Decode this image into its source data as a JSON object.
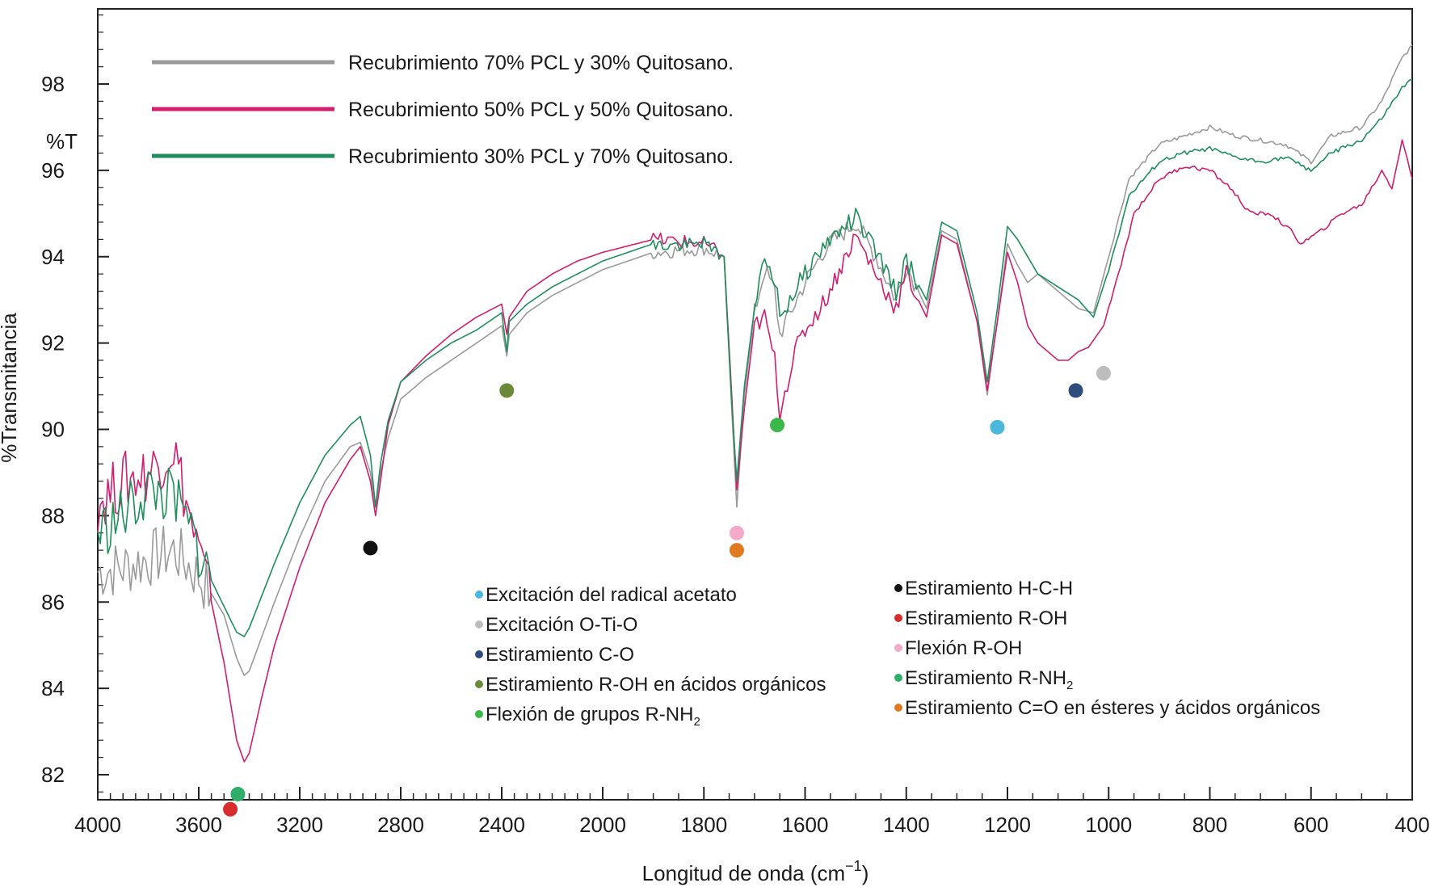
{
  "chart_data": {
    "type": "line",
    "xlabel": "Longitud de onda (cm",
    "xlabel_sup": "−1",
    "xlabel_suffix": ")",
    "ylabel": "%Transmitancia",
    "unit_label": "%T",
    "xlim": [
      4000,
      400
    ],
    "ylim": [
      81.5,
      99.8
    ],
    "x_ticks": [
      4000,
      3600,
      3200,
      2800,
      2400,
      2000,
      1800,
      1600,
      1400,
      1200,
      1000,
      800,
      600,
      400
    ],
    "y_ticks": [
      82,
      84,
      86,
      88,
      90,
      92,
      94,
      96,
      98
    ],
    "grid": false,
    "legend_position": "top-left",
    "series": [
      {
        "name": "Recubrimiento 70% PCL y 30% Quitosano.",
        "color": "#9a9a9a",
        "points": [
          [
            4000,
            86.7
          ],
          [
            3900,
            86.8
          ],
          [
            3800,
            87.0
          ],
          [
            3700,
            87.2
          ],
          [
            3600,
            86.6
          ],
          [
            3550,
            86.2
          ],
          [
            3500,
            85.7
          ],
          [
            3450,
            84.7
          ],
          [
            3420,
            84.3
          ],
          [
            3400,
            84.4
          ],
          [
            3300,
            86.0
          ],
          [
            3200,
            87.5
          ],
          [
            3100,
            88.8
          ],
          [
            3000,
            89.6
          ],
          [
            2960,
            89.7
          ],
          [
            2920,
            89.0
          ],
          [
            2900,
            88.2
          ],
          [
            2880,
            89.0
          ],
          [
            2850,
            89.8
          ],
          [
            2800,
            90.7
          ],
          [
            2700,
            91.2
          ],
          [
            2600,
            91.6
          ],
          [
            2500,
            92.0
          ],
          [
            2400,
            92.4
          ],
          [
            2380,
            91.7
          ],
          [
            2370,
            92.2
          ],
          [
            2300,
            92.7
          ],
          [
            2200,
            93.1
          ],
          [
            2100,
            93.4
          ],
          [
            2000,
            93.7
          ],
          [
            1900,
            94.1
          ],
          [
            1800,
            94.2
          ],
          [
            1760,
            94.0
          ],
          [
            1745,
            90.5
          ],
          [
            1735,
            88.2
          ],
          [
            1720,
            90.8
          ],
          [
            1700,
            92.7
          ],
          [
            1680,
            93.7
          ],
          [
            1660,
            93.2
          ],
          [
            1650,
            92.2
          ],
          [
            1600,
            93.4
          ],
          [
            1560,
            94.2
          ],
          [
            1500,
            94.8
          ],
          [
            1460,
            94.0
          ],
          [
            1420,
            93.0
          ],
          [
            1400,
            93.8
          ],
          [
            1360,
            92.8
          ],
          [
            1330,
            94.6
          ],
          [
            1300,
            94.4
          ],
          [
            1260,
            92.5
          ],
          [
            1240,
            90.8
          ],
          [
            1220,
            92.5
          ],
          [
            1200,
            94.3
          ],
          [
            1180,
            93.8
          ],
          [
            1160,
            93.4
          ],
          [
            1140,
            93.6
          ],
          [
            1100,
            93.2
          ],
          [
            1060,
            92.8
          ],
          [
            1030,
            92.7
          ],
          [
            1000,
            94.0
          ],
          [
            960,
            95.8
          ],
          [
            900,
            96.6
          ],
          [
            850,
            96.8
          ],
          [
            800,
            97.0
          ],
          [
            750,
            96.8
          ],
          [
            700,
            96.7
          ],
          [
            650,
            96.6
          ],
          [
            600,
            96.2
          ],
          [
            560,
            96.8
          ],
          [
            500,
            97.0
          ],
          [
            460,
            97.6
          ],
          [
            420,
            98.6
          ],
          [
            400,
            98.9
          ]
        ]
      },
      {
        "name": "Recubrimiento 50% PCL y 50% Quitosano.",
        "color": "#d11e6e",
        "points": [
          [
            4000,
            88.3
          ],
          [
            3900,
            88.8
          ],
          [
            3800,
            89.0
          ],
          [
            3700,
            89.6
          ],
          [
            3620,
            87.6
          ],
          [
            3550,
            86.0
          ],
          [
            3500,
            84.6
          ],
          [
            3450,
            82.8
          ],
          [
            3420,
            82.3
          ],
          [
            3400,
            82.5
          ],
          [
            3350,
            83.8
          ],
          [
            3300,
            85.0
          ],
          [
            3200,
            86.8
          ],
          [
            3100,
            88.3
          ],
          [
            3000,
            89.3
          ],
          [
            2960,
            89.6
          ],
          [
            2920,
            88.8
          ],
          [
            2900,
            88.0
          ],
          [
            2880,
            88.8
          ],
          [
            2850,
            90.1
          ],
          [
            2800,
            91.1
          ],
          [
            2700,
            91.7
          ],
          [
            2600,
            92.2
          ],
          [
            2500,
            92.6
          ],
          [
            2400,
            92.9
          ],
          [
            2380,
            92.2
          ],
          [
            2370,
            92.6
          ],
          [
            2300,
            93.2
          ],
          [
            2200,
            93.6
          ],
          [
            2100,
            93.9
          ],
          [
            2000,
            94.1
          ],
          [
            1900,
            94.4
          ],
          [
            1800,
            94.3
          ],
          [
            1760,
            94.0
          ],
          [
            1745,
            90.8
          ],
          [
            1735,
            88.6
          ],
          [
            1720,
            90.5
          ],
          [
            1700,
            92.4
          ],
          [
            1680,
            92.6
          ],
          [
            1660,
            91.6
          ],
          [
            1650,
            90.4
          ],
          [
            1620,
            91.8
          ],
          [
            1600,
            92.3
          ],
          [
            1560,
            93.0
          ],
          [
            1500,
            94.5
          ],
          [
            1460,
            93.6
          ],
          [
            1420,
            92.8
          ],
          [
            1400,
            93.6
          ],
          [
            1360,
            92.6
          ],
          [
            1330,
            94.5
          ],
          [
            1300,
            94.3
          ],
          [
            1260,
            92.5
          ],
          [
            1240,
            90.9
          ],
          [
            1220,
            92.5
          ],
          [
            1200,
            94.1
          ],
          [
            1180,
            93.4
          ],
          [
            1160,
            92.4
          ],
          [
            1140,
            92.0
          ],
          [
            1100,
            91.6
          ],
          [
            1080,
            91.6
          ],
          [
            1060,
            91.8
          ],
          [
            1040,
            91.9
          ],
          [
            1010,
            92.4
          ],
          [
            980,
            93.6
          ],
          [
            950,
            95.0
          ],
          [
            900,
            95.8
          ],
          [
            850,
            96.1
          ],
          [
            800,
            96.0
          ],
          [
            760,
            95.6
          ],
          [
            720,
            95.0
          ],
          [
            680,
            95.0
          ],
          [
            640,
            94.6
          ],
          [
            620,
            94.3
          ],
          [
            580,
            94.6
          ],
          [
            540,
            95.0
          ],
          [
            500,
            95.2
          ],
          [
            460,
            96.0
          ],
          [
            440,
            95.6
          ],
          [
            420,
            96.7
          ],
          [
            400,
            95.8
          ]
        ]
      },
      {
        "name": "Recubrimiento 30% PCL y 70% Quitosano.",
        "color": "#1e8f5c",
        "points": [
          [
            4000,
            87.6
          ],
          [
            3900,
            88.0
          ],
          [
            3800,
            88.6
          ],
          [
            3700,
            88.4
          ],
          [
            3620,
            87.5
          ],
          [
            3550,
            86.5
          ],
          [
            3500,
            85.9
          ],
          [
            3450,
            85.3
          ],
          [
            3420,
            85.2
          ],
          [
            3400,
            85.4
          ],
          [
            3300,
            86.9
          ],
          [
            3200,
            88.3
          ],
          [
            3100,
            89.4
          ],
          [
            3000,
            90.1
          ],
          [
            2960,
            90.3
          ],
          [
            2920,
            89.4
          ],
          [
            2900,
            88.2
          ],
          [
            2880,
            89.2
          ],
          [
            2850,
            90.2
          ],
          [
            2800,
            91.1
          ],
          [
            2700,
            91.6
          ],
          [
            2600,
            92.0
          ],
          [
            2500,
            92.3
          ],
          [
            2400,
            92.7
          ],
          [
            2380,
            91.8
          ],
          [
            2370,
            92.5
          ],
          [
            2300,
            92.9
          ],
          [
            2200,
            93.3
          ],
          [
            2100,
            93.6
          ],
          [
            2000,
            93.9
          ],
          [
            1900,
            94.3
          ],
          [
            1800,
            94.3
          ],
          [
            1760,
            94.0
          ],
          [
            1745,
            90.6
          ],
          [
            1735,
            88.8
          ],
          [
            1720,
            91.0
          ],
          [
            1700,
            92.8
          ],
          [
            1680,
            93.9
          ],
          [
            1660,
            93.5
          ],
          [
            1650,
            92.6
          ],
          [
            1600,
            93.6
          ],
          [
            1560,
            94.3
          ],
          [
            1500,
            94.9
          ],
          [
            1460,
            94.1
          ],
          [
            1420,
            93.2
          ],
          [
            1400,
            93.9
          ],
          [
            1360,
            93.0
          ],
          [
            1330,
            94.8
          ],
          [
            1300,
            94.6
          ],
          [
            1260,
            92.7
          ],
          [
            1240,
            91.1
          ],
          [
            1220,
            92.8
          ],
          [
            1200,
            94.7
          ],
          [
            1180,
            94.4
          ],
          [
            1160,
            94.0
          ],
          [
            1140,
            93.6
          ],
          [
            1100,
            93.3
          ],
          [
            1060,
            93.0
          ],
          [
            1030,
            92.6
          ],
          [
            1000,
            93.7
          ],
          [
            960,
            95.4
          ],
          [
            900,
            96.2
          ],
          [
            850,
            96.4
          ],
          [
            800,
            96.5
          ],
          [
            750,
            96.3
          ],
          [
            700,
            96.2
          ],
          [
            650,
            96.3
          ],
          [
            600,
            96.0
          ],
          [
            560,
            96.4
          ],
          [
            500,
            96.7
          ],
          [
            460,
            97.2
          ],
          [
            420,
            97.9
          ],
          [
            400,
            98.1
          ]
        ]
      }
    ],
    "markers": [
      {
        "x": 3475,
        "y": 81.2,
        "color": "#d62d2d"
      },
      {
        "x": 3445,
        "y": 81.55,
        "color": "#2fae6a"
      },
      {
        "x": 2920,
        "y": 87.25,
        "color": "#111111"
      },
      {
        "x": 2380,
        "y": 90.9,
        "color": "#6a8a3a"
      },
      {
        "x": 1735,
        "y": 87.6,
        "color": "#f2aac8"
      },
      {
        "x": 1735,
        "y": 87.2,
        "color": "#e07a20"
      },
      {
        "x": 1655,
        "y": 90.1,
        "color": "#3ab84a"
      },
      {
        "x": 1220,
        "y": 90.05,
        "color": "#4ab8da"
      },
      {
        "x": 1065,
        "y": 90.9,
        "color": "#2e4c7c"
      },
      {
        "x": 1010,
        "y": 91.3,
        "color": "#bdbdbd"
      }
    ],
    "annotations_left": [
      {
        "label": "Excitación del radical acetato",
        "color": "#4ab8da"
      },
      {
        "label": "Excitación O-Ti-O",
        "color": "#bdbdbd"
      },
      {
        "label": "Estiramiento C-O",
        "color": "#2e4c7c"
      },
      {
        "label": "Estiramiento R-OH en ácidos orgánicos",
        "color": "#6a8a3a"
      },
      {
        "label": "Flexión de grupos R-NH",
        "sub": "2",
        "color": "#3ab84a"
      }
    ],
    "annotations_right": [
      {
        "label": "Estiramiento H-C-H",
        "color": "#111111"
      },
      {
        "label": "Estiramiento R-OH",
        "color": "#d62d2d"
      },
      {
        "label": "Flexión R-OH",
        "color": "#f2aac8"
      },
      {
        "label": "Estiramiento R-NH",
        "sub": "2",
        "color": "#2fae6a"
      },
      {
        "label": "Estiramiento C=O en ésteres y ácidos orgánicos",
        "color": "#e07a20"
      }
    ]
  }
}
